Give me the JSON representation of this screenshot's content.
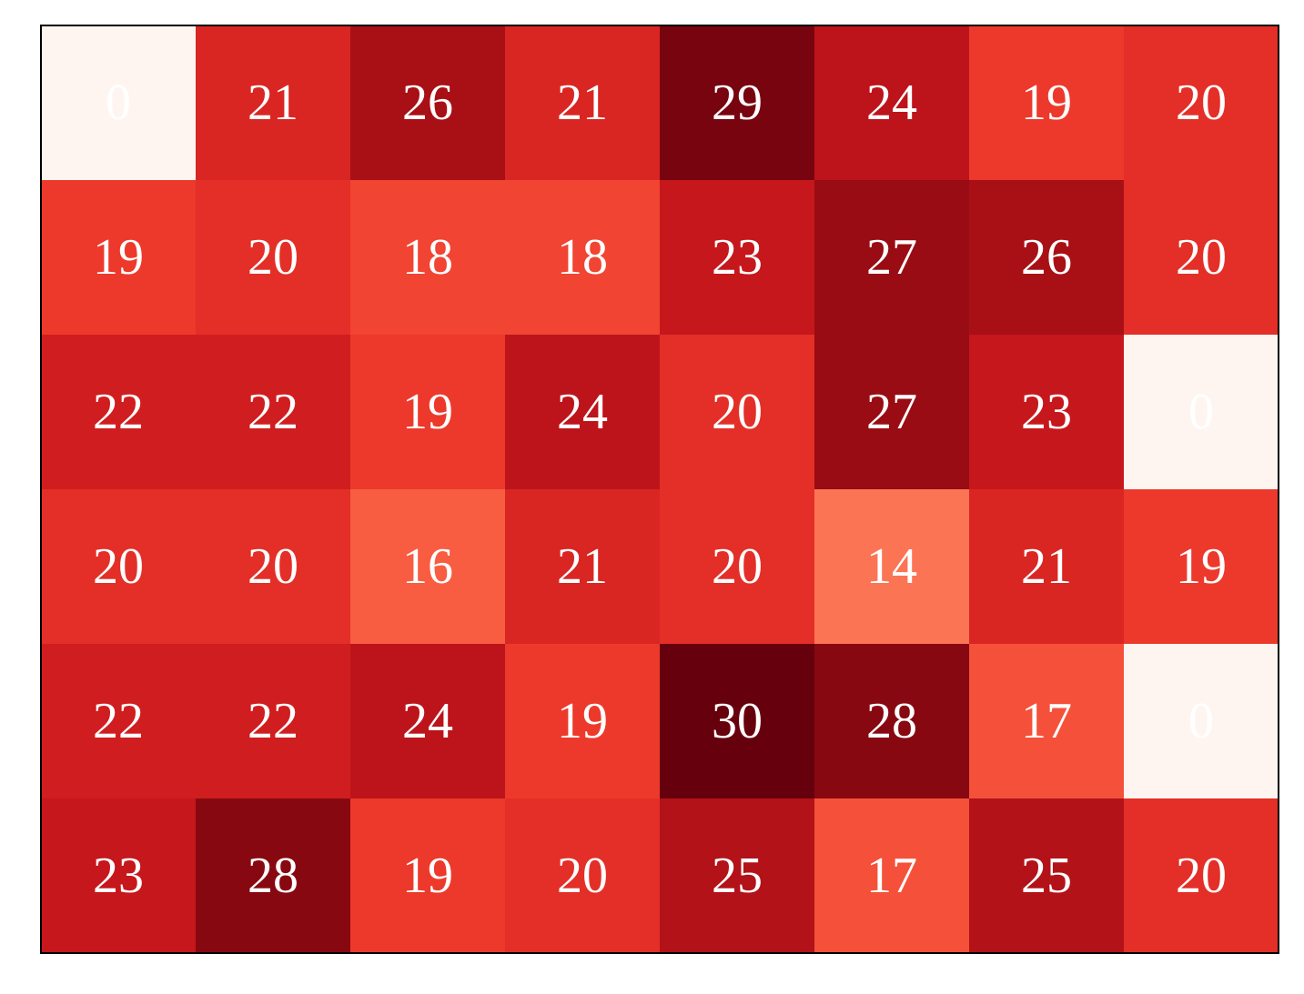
{
  "chart_data": {
    "type": "heatmap",
    "colormap": "Reds",
    "vmin": 0,
    "vmax": 30,
    "annotation_color": "#ffffff",
    "grid": false,
    "axes_ticks": false,
    "values": [
      [
        0,
        21,
        26,
        21,
        29,
        24,
        19,
        20
      ],
      [
        19,
        20,
        18,
        18,
        23,
        27,
        26,
        20
      ],
      [
        22,
        22,
        19,
        24,
        20,
        27,
        23,
        0
      ],
      [
        20,
        20,
        16,
        21,
        20,
        14,
        21,
        19
      ],
      [
        22,
        22,
        24,
        19,
        30,
        28,
        17,
        0
      ],
      [
        23,
        28,
        19,
        20,
        25,
        17,
        25,
        20
      ]
    ]
  }
}
